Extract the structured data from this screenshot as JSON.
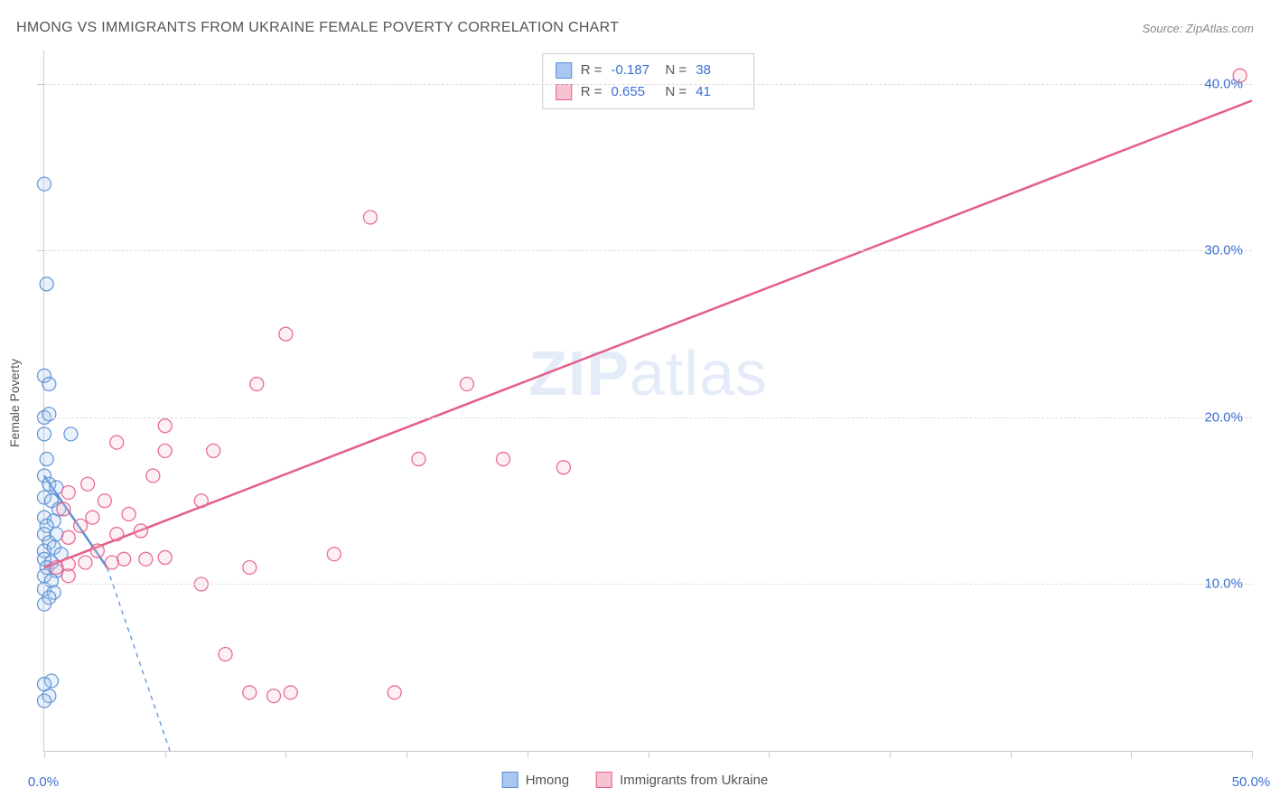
{
  "title": "HMONG VS IMMIGRANTS FROM UKRAINE FEMALE POVERTY CORRELATION CHART",
  "source": "Source: ZipAtlas.com",
  "ylabel": "Female Poverty",
  "watermark": {
    "bold": "ZIP",
    "rest": "atlas"
  },
  "chart": {
    "type": "scatter",
    "xlim": [
      0,
      50
    ],
    "ylim": [
      0,
      42
    ],
    "x_ticks": [
      0,
      5,
      10,
      15,
      20,
      25,
      30,
      35,
      40,
      45,
      50
    ],
    "x_tick_labels": {
      "0": "0.0%",
      "50": "50.0%"
    },
    "y_gridlines": [
      10,
      20,
      30,
      40
    ],
    "y_tick_labels": {
      "10": "10.0%",
      "20": "20.0%",
      "30": "30.0%",
      "40": "40.0%"
    },
    "background_color": "#ffffff",
    "grid_color": "#dddddd",
    "axis_color": "#cccccc",
    "tick_label_color": "#3b6fd4",
    "marker_radius": 7.5,
    "series": [
      {
        "id": "hmong",
        "label": "Hmong",
        "color_fill": "#a9c7f0",
        "color_stroke": "#5b8fd6",
        "R": "-0.187",
        "N": "38",
        "trend": {
          "x1": 0,
          "y1": 16.5,
          "x2": 2.6,
          "y2": 11.0,
          "solid_then_dash_at_x": 2.6,
          "x3": 5.2,
          "y3": 0
        },
        "points": [
          [
            0.0,
            34.0
          ],
          [
            0.1,
            28.0
          ],
          [
            0.0,
            22.5
          ],
          [
            0.2,
            22.0
          ],
          [
            0.0,
            20.0
          ],
          [
            0.2,
            20.2
          ],
          [
            0.0,
            19.0
          ],
          [
            1.1,
            19.0
          ],
          [
            0.1,
            17.5
          ],
          [
            0.0,
            16.5
          ],
          [
            0.2,
            16.0
          ],
          [
            0.5,
            15.8
          ],
          [
            0.0,
            15.2
          ],
          [
            0.3,
            15.0
          ],
          [
            0.6,
            14.5
          ],
          [
            0.0,
            14.0
          ],
          [
            0.4,
            13.8
          ],
          [
            0.1,
            13.5
          ],
          [
            0.0,
            13.0
          ],
          [
            0.5,
            13.0
          ],
          [
            0.2,
            12.5
          ],
          [
            0.0,
            12.0
          ],
          [
            0.4,
            12.2
          ],
          [
            0.7,
            11.8
          ],
          [
            0.0,
            11.5
          ],
          [
            0.3,
            11.3
          ],
          [
            0.1,
            11.0
          ],
          [
            0.5,
            10.8
          ],
          [
            0.0,
            10.5
          ],
          [
            0.3,
            10.2
          ],
          [
            0.0,
            9.7
          ],
          [
            0.4,
            9.5
          ],
          [
            0.2,
            9.2
          ],
          [
            0.0,
            8.8
          ],
          [
            0.3,
            4.2
          ],
          [
            0.0,
            4.0
          ],
          [
            0.2,
            3.3
          ],
          [
            0.0,
            3.0
          ]
        ]
      },
      {
        "id": "ukraine",
        "label": "Immigrants from Ukraine",
        "color_fill": "#f6c3cf",
        "color_stroke": "#e55e87",
        "R": "0.655",
        "N": "41",
        "trend": {
          "x1": 0,
          "y1": 11.0,
          "x2": 50,
          "y2": 39.0
        },
        "points": [
          [
            49.5,
            40.5
          ],
          [
            13.5,
            32.0
          ],
          [
            10.0,
            25.0
          ],
          [
            8.8,
            22.0
          ],
          [
            17.5,
            22.0
          ],
          [
            5.0,
            19.5
          ],
          [
            7.0,
            18.0
          ],
          [
            5.0,
            18.0
          ],
          [
            3.0,
            18.5
          ],
          [
            21.5,
            17.0
          ],
          [
            19.0,
            17.5
          ],
          [
            15.5,
            17.5
          ],
          [
            4.5,
            16.5
          ],
          [
            1.8,
            16.0
          ],
          [
            1.0,
            15.5
          ],
          [
            2.5,
            15.0
          ],
          [
            6.5,
            15.0
          ],
          [
            3.5,
            14.2
          ],
          [
            2.0,
            14.0
          ],
          [
            0.8,
            14.5
          ],
          [
            1.5,
            13.5
          ],
          [
            3.0,
            13.0
          ],
          [
            4.0,
            13.2
          ],
          [
            1.0,
            12.8
          ],
          [
            2.2,
            12.0
          ],
          [
            12.0,
            11.8
          ],
          [
            5.0,
            11.6
          ],
          [
            4.2,
            11.5
          ],
          [
            3.3,
            11.5
          ],
          [
            2.8,
            11.3
          ],
          [
            1.7,
            11.3
          ],
          [
            1.0,
            11.2
          ],
          [
            0.5,
            11.0
          ],
          [
            8.5,
            11.0
          ],
          [
            6.5,
            10.0
          ],
          [
            7.5,
            5.8
          ],
          [
            8.5,
            3.5
          ],
          [
            9.5,
            3.3
          ],
          [
            10.2,
            3.5
          ],
          [
            14.5,
            3.5
          ],
          [
            1.0,
            10.5
          ]
        ]
      }
    ]
  },
  "legend_bottom": [
    {
      "swatch_fill": "#a9c7f0",
      "swatch_stroke": "#5b8fd6",
      "label": "Hmong"
    },
    {
      "swatch_fill": "#f6c3cf",
      "swatch_stroke": "#e55e87",
      "label": "Immigrants from Ukraine"
    }
  ]
}
